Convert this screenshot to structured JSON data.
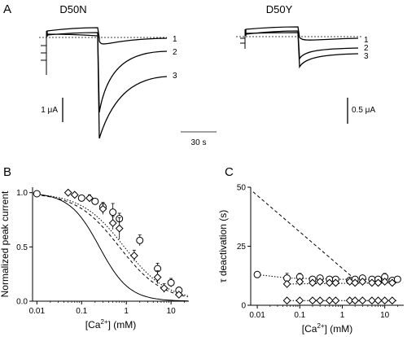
{
  "panels": {
    "A": {
      "letter": "A",
      "left_title": "D50N",
      "right_title": "D50Y",
      "trace_labels": [
        "1",
        "2",
        "3"
      ],
      "scale_left": "1 μA",
      "scale_right": "0.5 μA",
      "scale_time": "30 s"
    },
    "B": {
      "letter": "B"
    },
    "C": {
      "letter": "C"
    }
  },
  "chart_data": [
    {
      "panel": "B",
      "type": "scatter",
      "ylabel": "Normalized peak current",
      "xlabel_base": "[Ca",
      "xlabel_sup": "2+",
      "xlabel_tail": "] (mM)",
      "xscale": "log",
      "xlim": [
        0.008,
        25
      ],
      "ylim": [
        0,
        1.05
      ],
      "xticks": [
        {
          "v": 0.01,
          "label": "0.01"
        },
        {
          "v": 0.1,
          "label": "0.1"
        },
        {
          "v": 1,
          "label": "1"
        },
        {
          "v": 10,
          "label": "10"
        }
      ],
      "yticks": [
        {
          "v": 0,
          "label": "0.0"
        },
        {
          "v": 0.5,
          "label": "0.5"
        },
        {
          "v": 1,
          "label": "1.0"
        }
      ],
      "series": [
        {
          "marker": "circle",
          "x": [
            0.01,
            0.1,
            0.2,
            0.3,
            0.5,
            0.7,
            2,
            5,
            10,
            15
          ],
          "y": [
            0.99,
            0.95,
            0.92,
            0.87,
            0.82,
            0.76,
            0.56,
            0.3,
            0.17,
            0.1
          ],
          "err": [
            0,
            0.02,
            0.02,
            0.04,
            0.08,
            0.05,
            0.05,
            0.05,
            0.04,
            0.03
          ]
        },
        {
          "marker": "diamond",
          "x": [
            0.05,
            0.07,
            0.15,
            0.3,
            0.5,
            0.7,
            1.5,
            5,
            7,
            15
          ],
          "y": [
            1.0,
            0.98,
            0.95,
            0.85,
            0.72,
            0.67,
            0.42,
            0.22,
            0.12,
            0.06
          ],
          "err": [
            0,
            0.02,
            0.03,
            0.05,
            0.06,
            0.1,
            0.05,
            0.06,
            0.04,
            0.02
          ]
        }
      ],
      "fits": [
        {
          "style": "dotted",
          "ic50": 0.9,
          "n": 0.9
        },
        {
          "style": "dashed",
          "ic50": 0.7,
          "n": 0.9
        },
        {
          "style": "solid",
          "ic50": 0.25,
          "n": 1.3
        }
      ]
    },
    {
      "panel": "C",
      "type": "scatter",
      "ylabel": "τ deactivation (s)",
      "xlabel_base": "[Ca",
      "xlabel_sup": "2+",
      "xlabel_tail": "] (mM)",
      "xscale": "log",
      "xlim": [
        0.007,
        28
      ],
      "ylim": [
        0,
        50
      ],
      "xticks": [
        {
          "v": 0.01,
          "label": "0.01"
        },
        {
          "v": 0.1,
          "label": "0.1"
        },
        {
          "v": 1,
          "label": "1"
        },
        {
          "v": 10,
          "label": "10"
        }
      ],
      "yticks": [
        {
          "v": 0,
          "label": "0"
        },
        {
          "v": 25,
          "label": "25"
        },
        {
          "v": 50,
          "label": "50"
        }
      ],
      "series": [
        {
          "marker": "circle",
          "x": [
            0.01,
            0.05,
            0.1,
            0.2,
            0.3,
            0.5,
            0.7,
            1.5,
            2,
            3,
            5,
            7,
            10,
            15,
            20
          ],
          "y": [
            13,
            11.5,
            12,
            11,
            11.5,
            11,
            11,
            10.5,
            11,
            11.5,
            11,
            11,
            12,
            10.5,
            11
          ],
          "err": [
            0,
            2,
            1.5,
            1,
            1,
            1,
            1,
            1,
            1,
            1,
            1,
            1,
            1.5,
            1,
            1
          ]
        },
        {
          "marker": "diamond",
          "x": [
            0.05,
            0.1,
            0.2,
            0.3,
            0.5,
            0.7,
            1.5,
            2,
            3,
            5,
            7,
            10,
            15
          ],
          "y": [
            9,
            10,
            9.5,
            10,
            9.5,
            9.5,
            10,
            9.5,
            10,
            9.5,
            9.5,
            10,
            9.5
          ],
          "err": [
            0,
            1,
            1,
            1,
            1,
            1,
            1,
            1,
            1,
            1,
            1,
            1,
            1
          ]
        },
        {
          "marker": "diamond",
          "x": [
            0.05,
            0.1,
            0.2,
            0.3,
            0.5,
            0.7,
            1.5,
            2,
            3,
            5,
            7,
            10,
            15
          ],
          "y": [
            2,
            2,
            2,
            2,
            2,
            2,
            2,
            2,
            2,
            2,
            2,
            2,
            2
          ],
          "err": [
            0,
            0,
            0,
            0,
            0,
            0,
            0,
            0,
            0,
            0,
            0,
            0,
            0
          ]
        }
      ],
      "fits": [
        {
          "style": "dashed",
          "points": [
            [
              0.008,
              48
            ],
            [
              2,
              11
            ]
          ]
        },
        {
          "style": "dotted",
          "points": [
            [
              0.01,
              13
            ],
            [
              0.05,
              11.5
            ],
            [
              1,
              11
            ],
            [
              20,
              11
            ]
          ]
        },
        {
          "style": "dotted",
          "points": [
            [
              0.05,
              9
            ],
            [
              20,
              9.5
            ]
          ]
        },
        {
          "style": "dotted",
          "points": [
            [
              0.05,
              2
            ],
            [
              20,
              2
            ]
          ]
        }
      ]
    }
  ]
}
